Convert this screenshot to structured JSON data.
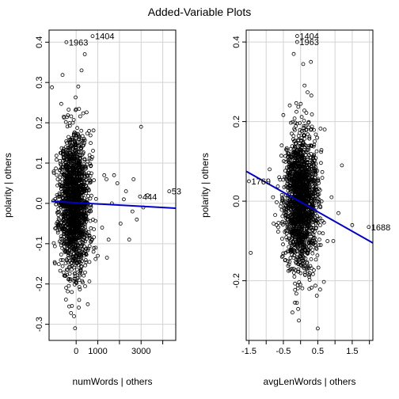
{
  "title": "Added-Variable Plots",
  "chart_data": [
    {
      "type": "scatter",
      "xlabel": "numWords | others",
      "ylabel": "polarity  | others",
      "xlim": [
        -1250,
        4600
      ],
      "ylim": [
        -0.34,
        0.43
      ],
      "x_ticks": [
        0,
        1000,
        2000,
        3000,
        4000
      ],
      "x_tick_labels": [
        "0",
        "1000",
        "",
        "3000",
        ""
      ],
      "y_ticks": [
        -0.3,
        -0.2,
        -0.1,
        0.0,
        0.1,
        0.2,
        0.3,
        0.4
      ],
      "grid": true,
      "regression_line": {
        "x": [
          -1150,
          4600
        ],
        "y": [
          0.005,
          -0.012
        ],
        "color": "#0000CC"
      },
      "labeled_points": [
        {
          "label": "1963",
          "x": -450,
          "y": 0.4
        },
        {
          "label": "1404",
          "x": 760,
          "y": 0.415
        },
        {
          "label": "444",
          "x": 2950,
          "y": 0.017
        },
        {
          "label": "53",
          "x": 4300,
          "y": 0.03
        }
      ],
      "extra_points": [
        [
          3000,
          0.19
        ],
        [
          2650,
          0.06
        ],
        [
          2300,
          0.03
        ],
        [
          2450,
          -0.09
        ],
        [
          1500,
          -0.09
        ],
        [
          1900,
          0.05
        ],
        [
          1750,
          0.07
        ],
        [
          2050,
          -0.05
        ],
        [
          2600,
          -0.02
        ],
        [
          3100,
          -0.01
        ],
        [
          1400,
          0.06
        ],
        [
          1200,
          -0.06
        ],
        [
          2800,
          -0.04
        ],
        [
          3300,
          0.02
        ],
        [
          1650,
          0.0
        ],
        [
          2200,
          0.01
        ],
        [
          1300,
          0.07
        ],
        [
          1000,
          -0.13
        ],
        [
          800,
          -0.12
        ],
        [
          600,
          0.18
        ],
        [
          700,
          0.11
        ],
        [
          900,
          -0.11
        ],
        [
          -850,
          0.06
        ],
        [
          -900,
          -0.05
        ],
        [
          400,
          0.37
        ],
        [
          250,
          0.33
        ],
        [
          100,
          0.29
        ],
        [
          -200,
          -0.22
        ],
        [
          -100,
          -0.28
        ],
        [
          -50,
          -0.31
        ]
      ],
      "cloud": {
        "n": 1700,
        "x_center": -100,
        "x_sd": 330,
        "y_sd": 0.085,
        "x_min": -1150,
        "seed": 11
      }
    },
    {
      "type": "scatter",
      "xlabel": "avgLenWords | others",
      "ylabel": "polarity  | others",
      "xlim": [
        -1.58,
        2.1
      ],
      "ylim": [
        -0.35,
        0.43
      ],
      "x_ticks": [
        -1.5,
        -1.0,
        -0.5,
        0.0,
        0.5,
        1.0,
        1.5,
        2.0
      ],
      "x_tick_labels": [
        "-1.5",
        "",
        "-0.5",
        "",
        "0.5",
        "",
        "1.5",
        ""
      ],
      "y_ticks": [
        -0.2,
        0.0,
        0.2,
        0.4
      ],
      "grid": true,
      "regression_line": {
        "x": [
          -1.58,
          2.1
        ],
        "y": [
          0.075,
          -0.105
        ],
        "color": "#0000CC"
      },
      "labeled_points": [
        {
          "label": "1404",
          "x": -0.1,
          "y": 0.415
        },
        {
          "label": "1963",
          "x": -0.1,
          "y": 0.4
        },
        {
          "label": "1769",
          "x": -1.5,
          "y": 0.05
        },
        {
          "label": "1688",
          "x": 1.98,
          "y": -0.065
        }
      ],
      "extra_points": [
        [
          -1.45,
          -0.13
        ],
        [
          1.5,
          -0.06
        ],
        [
          0.9,
          0.01
        ],
        [
          1.1,
          -0.03
        ],
        [
          -0.9,
          0.08
        ],
        [
          -0.8,
          0.01
        ],
        [
          0.95,
          -0.1
        ],
        [
          -0.55,
          0.14
        ],
        [
          0.7,
          0.18
        ],
        [
          -0.2,
          0.37
        ],
        [
          0.3,
          0.35
        ],
        [
          0.5,
          -0.32
        ],
        [
          -0.05,
          -0.3
        ],
        [
          1.2,
          0.09
        ],
        [
          -0.7,
          -0.06
        ]
      ],
      "cloud": {
        "n": 1700,
        "x_center": 0.0,
        "x_sd": 0.24,
        "y_sd": 0.085,
        "x_min": -1.5,
        "seed": 29
      }
    }
  ]
}
